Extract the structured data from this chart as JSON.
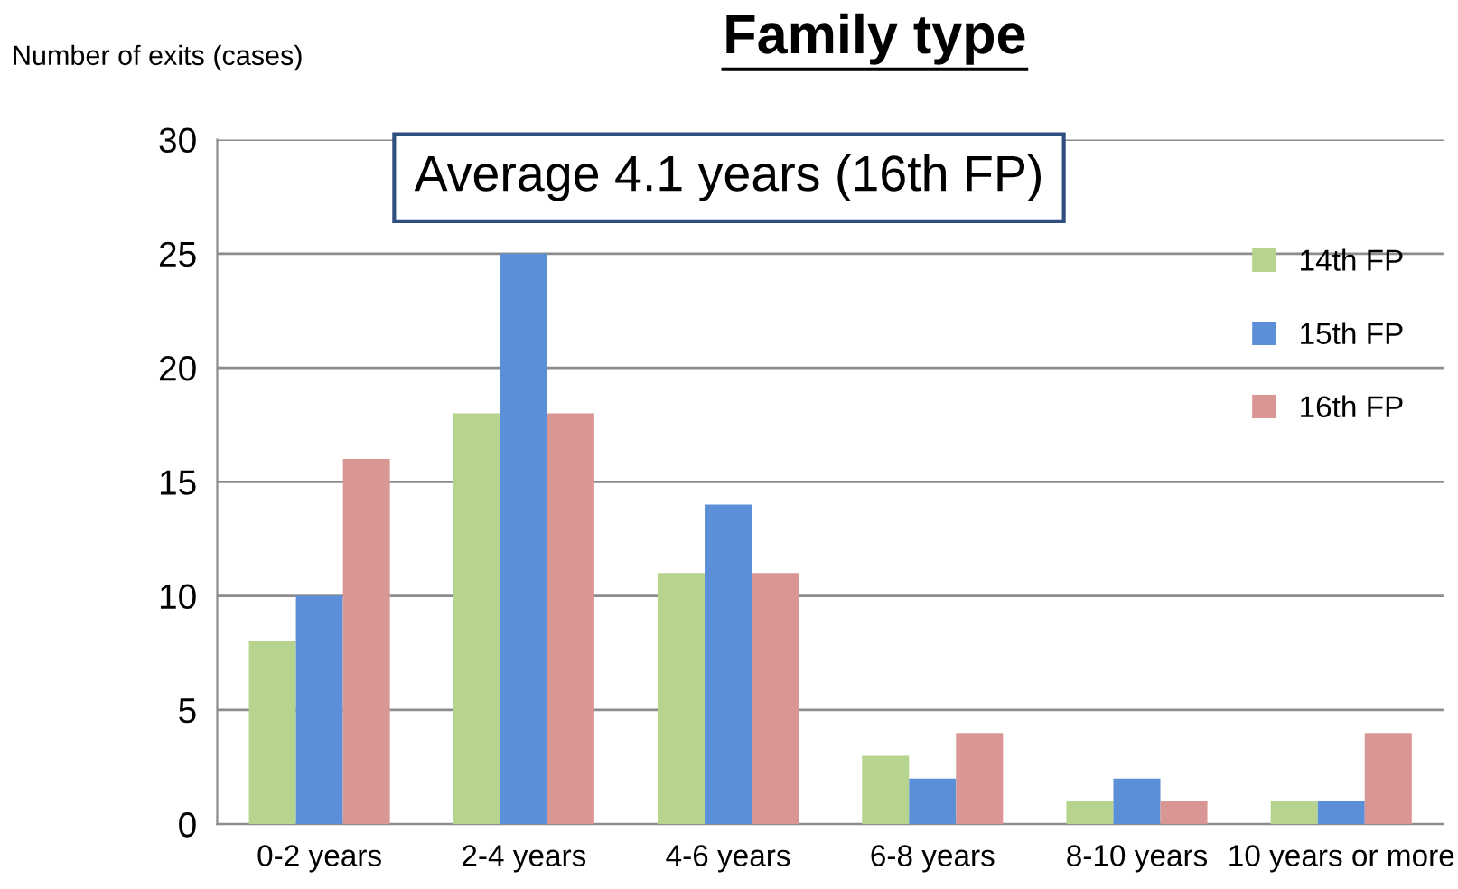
{
  "chart_data": {
    "type": "bar",
    "title": "Family type",
    "ylabel": "Number of exits (cases)",
    "annotations": [
      "Average 4.1 years (16th FP)"
    ],
    "categories": [
      "0-2 years",
      "2-4 years",
      "4-6 years",
      "6-8 years",
      "8-10 years",
      "10 years or more"
    ],
    "series": [
      {
        "name": "14th FP",
        "color": "#b7d48f",
        "values": [
          8,
          18,
          11,
          3,
          1,
          1
        ]
      },
      {
        "name": "15th FP",
        "color": "#5b8fd8",
        "values": [
          10,
          25,
          14,
          2,
          2,
          1
        ]
      },
      {
        "name": "16th FP",
        "color": "#d99694",
        "values": [
          16,
          18,
          11,
          4,
          1,
          4
        ]
      }
    ],
    "ylim": [
      0,
      30
    ],
    "yticks": [
      0,
      5,
      10,
      15,
      20,
      25,
      30
    ],
    "grid": "y",
    "legend": "top right"
  }
}
